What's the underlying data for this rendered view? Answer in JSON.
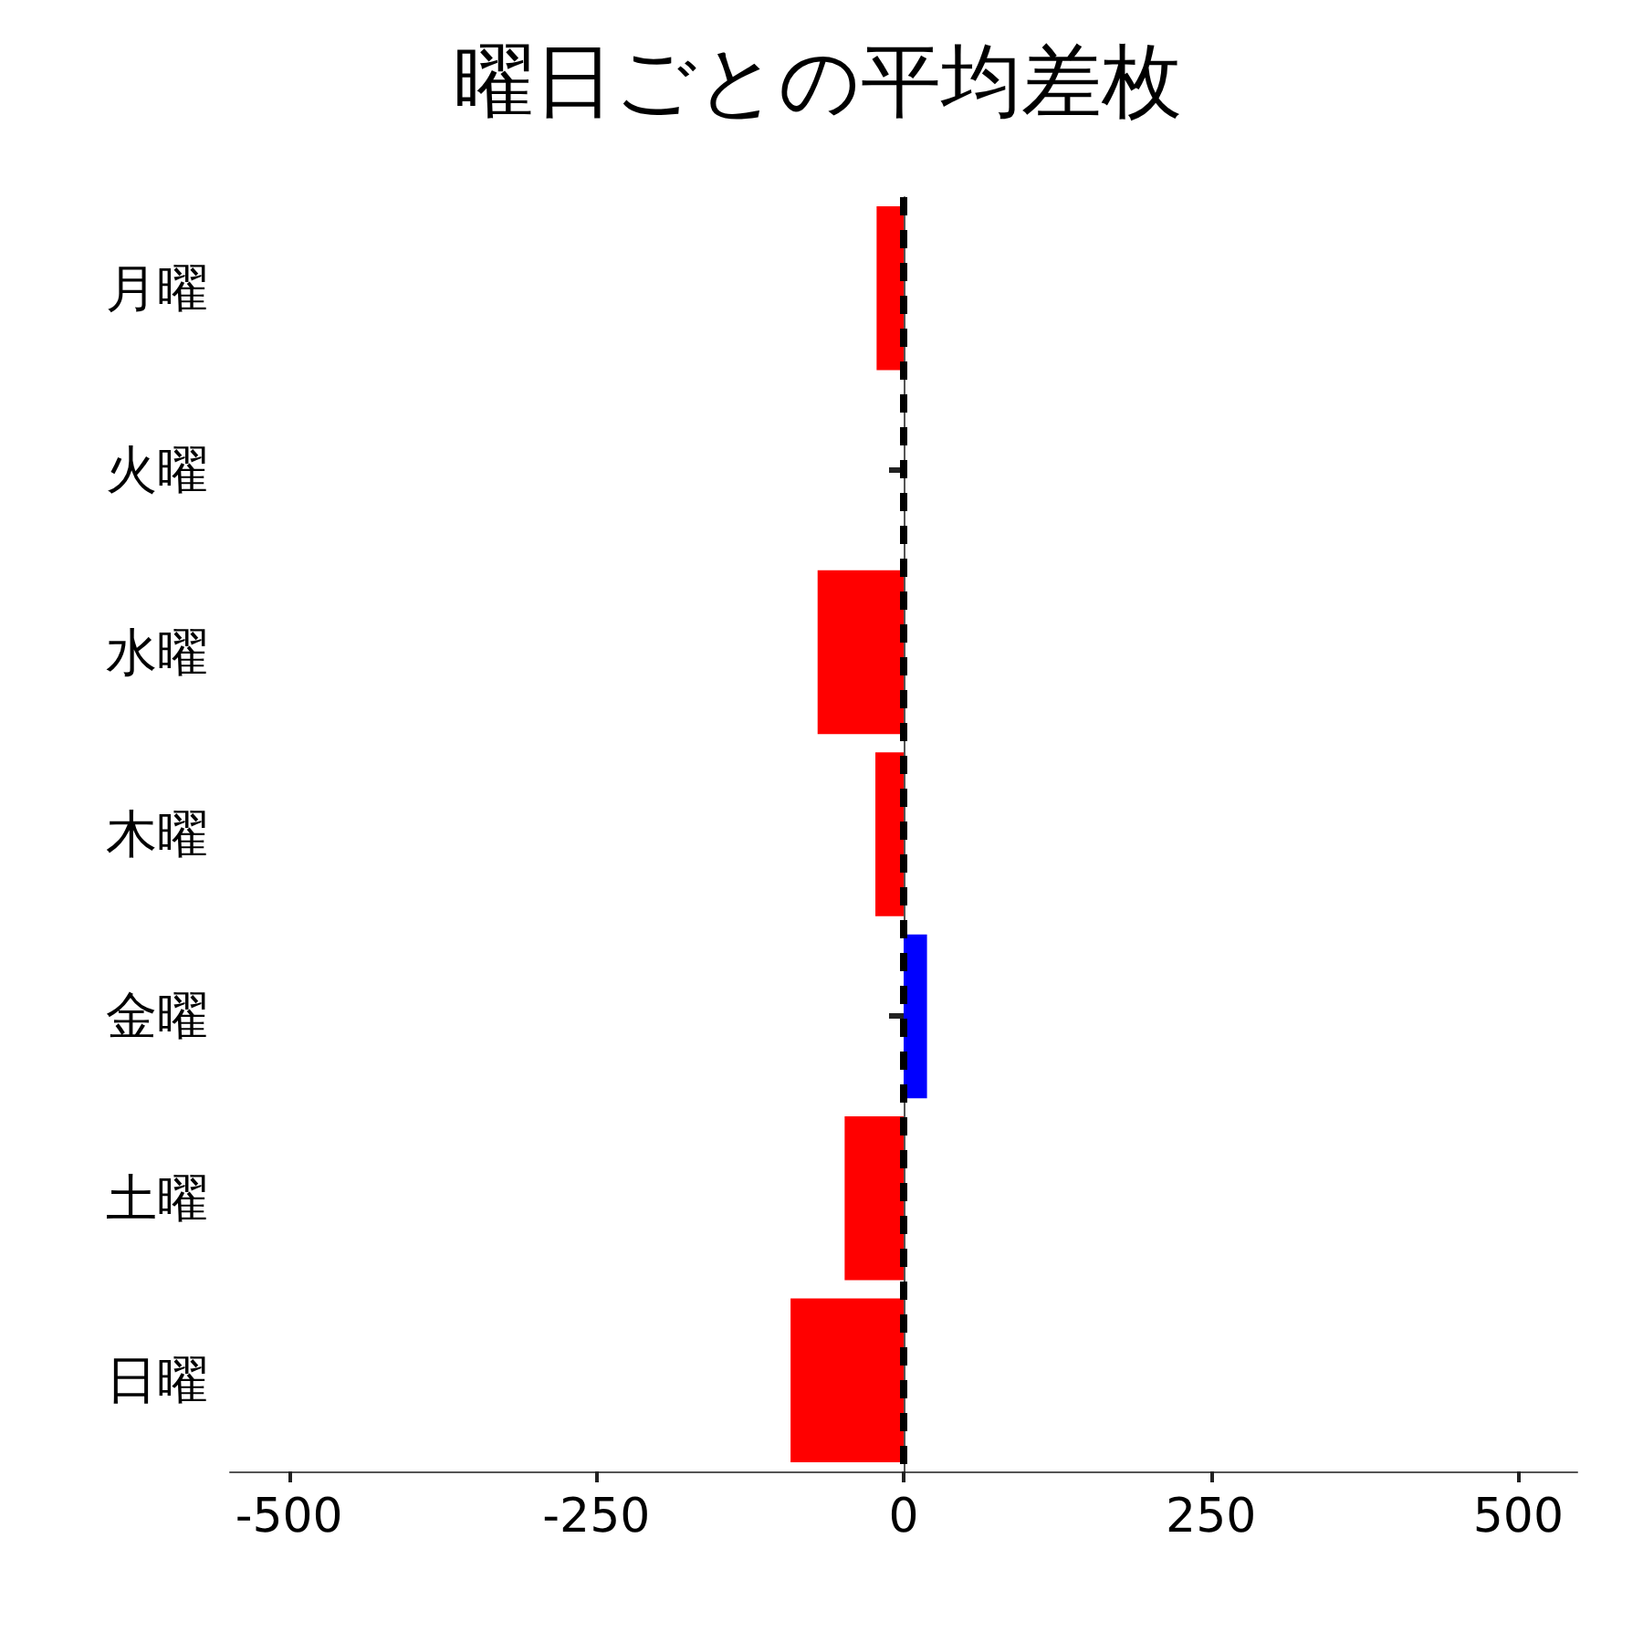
{
  "chart_data": {
    "type": "bar",
    "title": "曜日ごとの平均差枚",
    "orientation": "horizontal",
    "categories": [
      "月曜",
      "火曜",
      "水曜",
      "木曜",
      "金曜",
      "土曜",
      "日曜"
    ],
    "values": [
      -22,
      null,
      -70,
      -23,
      19,
      -48,
      -92
    ],
    "colors": [
      "#ff0000",
      "#ff0000",
      "#ff0000",
      "#ff0000",
      "#0000ff",
      "#ff0000",
      "#ff0000"
    ],
    "xlim": [
      -548,
      548
    ],
    "xticks": [
      -500,
      -250,
      0,
      250,
      500
    ],
    "grid": false,
    "ref_lines": [
      {
        "axis": "x",
        "value": 0,
        "color": "#000000",
        "line_style": "dashed"
      }
    ]
  }
}
